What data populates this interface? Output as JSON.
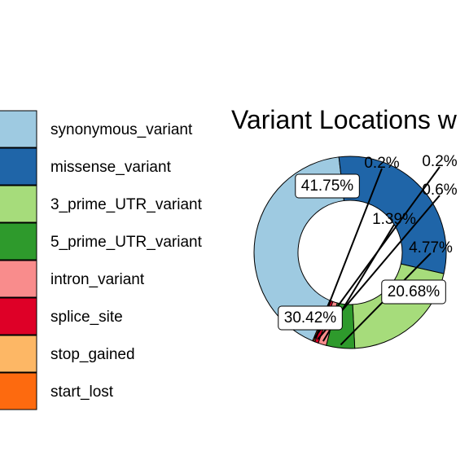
{
  "chart_data": {
    "type": "pie",
    "style": "donut",
    "title": "Variant Locations w",
    "categories": [
      "synonymous_variant",
      "missense_variant",
      "3_prime_UTR_variant",
      "5_prime_UTR_variant",
      "intron_variant",
      "splice_site",
      "stop_gained",
      "start_lost"
    ],
    "values": [
      41.75,
      30.42,
      20.68,
      4.77,
      1.39,
      0.6,
      0.2,
      0.2
    ],
    "labels": [
      "41.75%",
      "30.42%",
      "20.68%",
      "4.77%",
      "1.39%",
      "0.6%",
      "0.2%",
      "0.2%"
    ],
    "colors": [
      "#9ECAE1",
      "#1F65A8",
      "#A6DC7B",
      "#2E9A2C",
      "#F98C8C",
      "#DE0027",
      "#FDB765",
      "#FD6A0F"
    ],
    "legend_position": "left"
  }
}
